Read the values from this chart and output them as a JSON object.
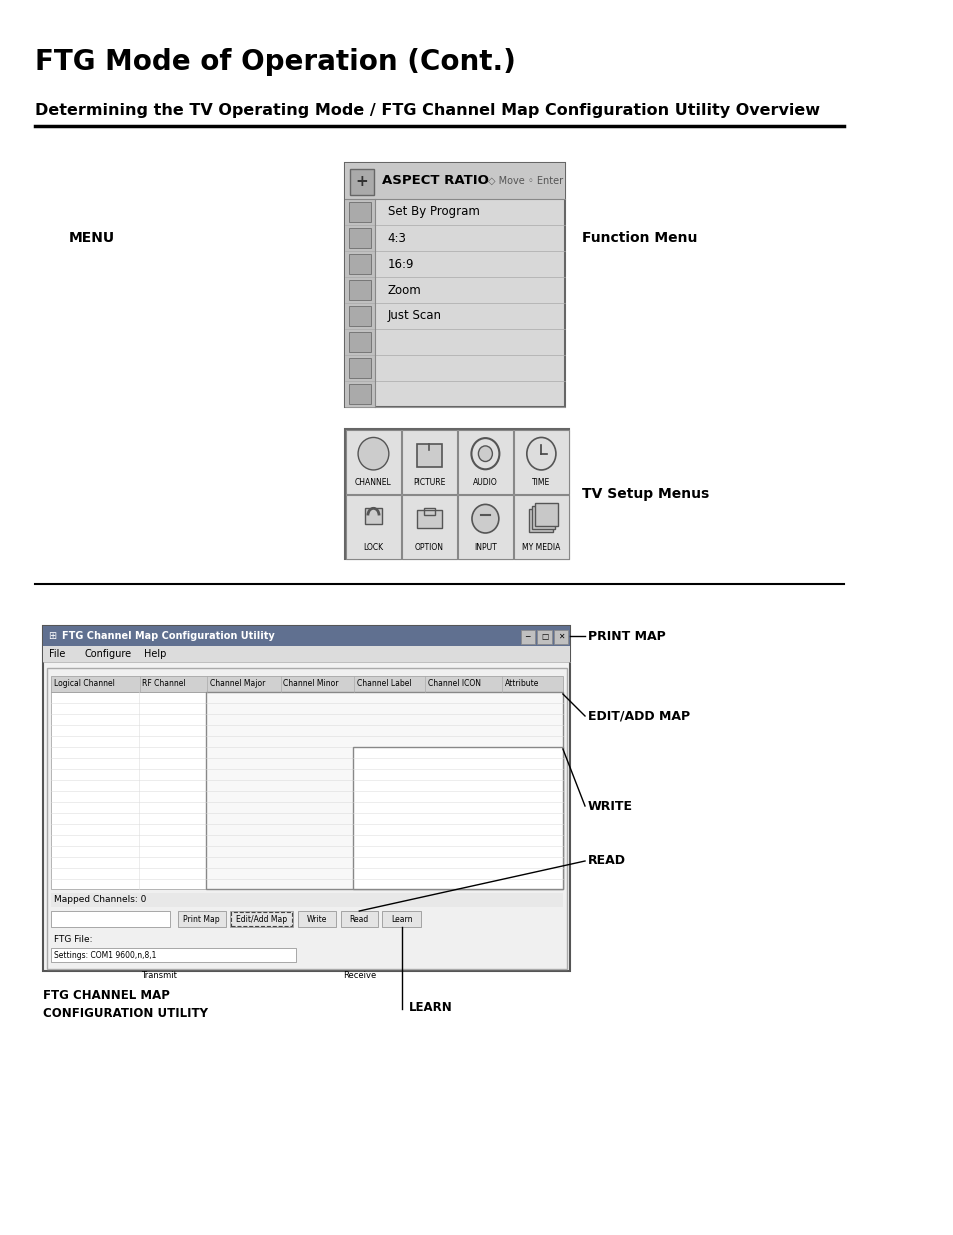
{
  "title": "FTG Mode of Operation (Cont.)",
  "subtitle": "Determining the TV Operating Mode / FTG Channel Map Configuration Utility Overview",
  "bg_color": "#ffffff",
  "title_fontsize": 20,
  "subtitle_fontsize": 11.5,
  "menu_label": "MENU",
  "function_menu_label": "Function Menu",
  "tv_setup_label": "TV Setup Menus",
  "aspect_ratio_title": "ASPECT RATIO",
  "nav_hints_move": "◇ Move",
  "nav_hints_enter": "◦ Enter",
  "aspect_ratio_items": [
    "Set By Program",
    "4:3",
    "16:9",
    "Zoom",
    "Just Scan"
  ],
  "aspect_ratio_extra_rows": 3,
  "setup_icons": [
    "CHANNEL",
    "PICTURE",
    "AUDIO",
    "TIME",
    "LOCK",
    "OPTION",
    "INPUT",
    "MY MEDIA"
  ],
  "ftg_win_title": "FTG Channel Map Configuration Utility",
  "ftg_menu": [
    "File",
    "Configure",
    "Help"
  ],
  "ftg_columns": [
    "Logical Channel",
    "RF Channel",
    "Channel Major",
    "Channel Minor",
    "Channel Label",
    "Channel ICON",
    "Attribute"
  ],
  "ftg_col_widths": [
    78,
    60,
    65,
    65,
    63,
    68,
    55
  ],
  "ftg_buttons": [
    "Print Map",
    "Edit/Add Map",
    "Write",
    "Read",
    "Learn"
  ],
  "ftg_btn_widths": [
    52,
    68,
    42,
    40,
    42
  ],
  "ftg_bottom_left": "FTG CHANNEL MAP\nCONFIGURATION UTILITY",
  "ftg_mapped": "Mapped Channels: 0",
  "ftg_file": "FTG File:",
  "ftg_settings": "Settings: COM1 9600,n,8,1",
  "ftg_transmit": "Transmit",
  "ftg_receive": "Receive",
  "ann_print_map": "PRINT MAP",
  "ann_edit_add": "EDIT/ADD MAP",
  "ann_write": "WRITE",
  "ann_read": "READ",
  "ann_learn": "LEARN"
}
